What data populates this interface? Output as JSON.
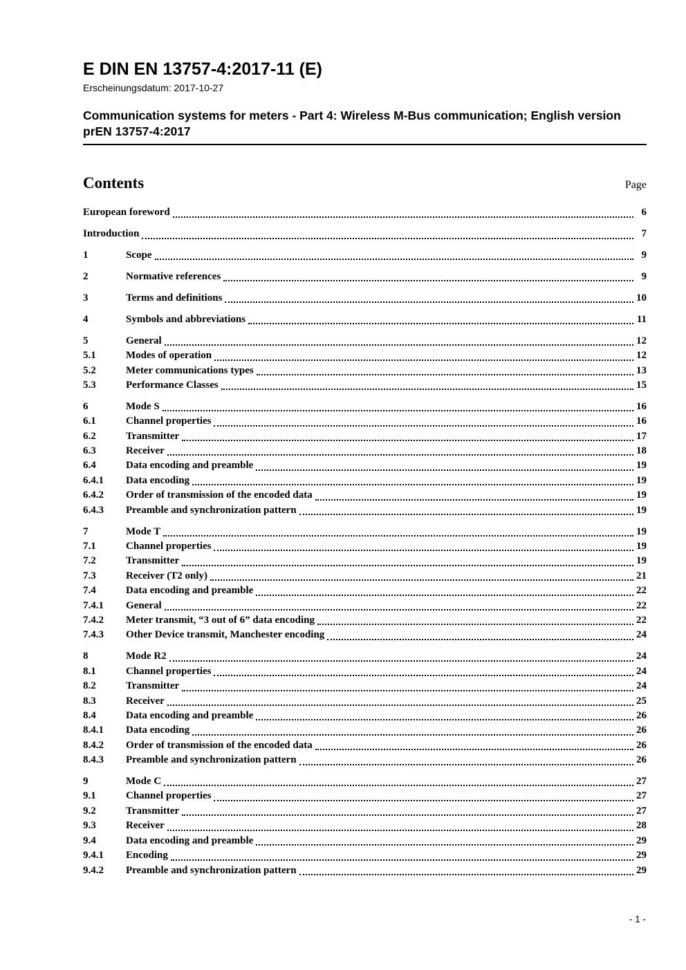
{
  "header": {
    "doc_code": "E DIN EN 13757-4:2017-11 (E)",
    "release_label": "Erscheinungsdatum: 2017-10-27",
    "title": "Communication systems for meters - Part 4: Wireless M-Bus communication; English version prEN 13757-4:2017"
  },
  "contents": {
    "heading": "Contents",
    "page_label": "Page",
    "entries": [
      {
        "num": "",
        "title": "European foreword",
        "page": "6"
      },
      {
        "num": "",
        "title": "Introduction",
        "page": "7"
      },
      {
        "num": "1",
        "title": "Scope",
        "page": "9"
      },
      {
        "num": "2",
        "title": "Normative references",
        "page": "9"
      },
      {
        "num": "3",
        "title": "Terms and definitions",
        "page": "10"
      },
      {
        "num": "4",
        "title": "Symbols and abbreviations",
        "page": "11"
      },
      {
        "num": "5",
        "title": "General",
        "page": "12"
      },
      {
        "num": "5.1",
        "title": "Modes of operation",
        "page": "12"
      },
      {
        "num": "5.2",
        "title": "Meter communications types",
        "page": "13"
      },
      {
        "num": "5.3",
        "title": "Performance Classes",
        "page": "15"
      },
      {
        "num": "6",
        "title": "Mode S",
        "page": "16"
      },
      {
        "num": "6.1",
        "title": "Channel properties",
        "page": "16"
      },
      {
        "num": "6.2",
        "title": "Transmitter",
        "page": "17"
      },
      {
        "num": "6.3",
        "title": "Receiver",
        "page": "18"
      },
      {
        "num": "6.4",
        "title": "Data encoding and preamble",
        "page": "19"
      },
      {
        "num": "6.4.1",
        "title": "Data encoding",
        "page": "19"
      },
      {
        "num": "6.4.2",
        "title": "Order of transmission of the encoded data",
        "page": "19"
      },
      {
        "num": "6.4.3",
        "title": "Preamble and synchronization pattern",
        "page": "19"
      },
      {
        "num": "7",
        "title": "Mode T",
        "page": "19"
      },
      {
        "num": "7.1",
        "title": "Channel properties",
        "page": "19"
      },
      {
        "num": "7.2",
        "title": "Transmitter",
        "page": "19"
      },
      {
        "num": "7.3",
        "title": "Receiver (T2 only)",
        "page": "21"
      },
      {
        "num": "7.4",
        "title": "Data encoding and preamble",
        "page": "22"
      },
      {
        "num": "7.4.1",
        "title": "General",
        "page": "22"
      },
      {
        "num": "7.4.2",
        "title": "Meter transmit, “3 out of 6” data encoding",
        "page": "22"
      },
      {
        "num": "7.4.3",
        "title": "Other Device transmit, Manchester encoding",
        "page": "24"
      },
      {
        "num": "8",
        "title": "Mode R2",
        "page": "24"
      },
      {
        "num": "8.1",
        "title": "Channel properties",
        "page": "24"
      },
      {
        "num": "8.2",
        "title": "Transmitter",
        "page": "24"
      },
      {
        "num": "8.3",
        "title": "Receiver",
        "page": "25"
      },
      {
        "num": "8.4",
        "title": "Data encoding and preamble",
        "page": "26"
      },
      {
        "num": "8.4.1",
        "title": "Data encoding",
        "page": "26"
      },
      {
        "num": "8.4.2",
        "title": "Order of transmission of the encoded data",
        "page": "26"
      },
      {
        "num": "8.4.3",
        "title": "Preamble and synchronization pattern",
        "page": "26"
      },
      {
        "num": "9",
        "title": "Mode C",
        "page": "27"
      },
      {
        "num": "9.1",
        "title": "Channel properties",
        "page": "27"
      },
      {
        "num": "9.2",
        "title": "Transmitter",
        "page": "27"
      },
      {
        "num": "9.3",
        "title": "Receiver",
        "page": "28"
      },
      {
        "num": "9.4",
        "title": "Data encoding and preamble",
        "page": "29"
      },
      {
        "num": "9.4.1",
        "title": "Encoding",
        "page": "29"
      },
      {
        "num": "9.4.2",
        "title": "Preamble and synchronization pattern",
        "page": "29"
      }
    ]
  },
  "footer": {
    "page_indicator": "- 1 -"
  }
}
